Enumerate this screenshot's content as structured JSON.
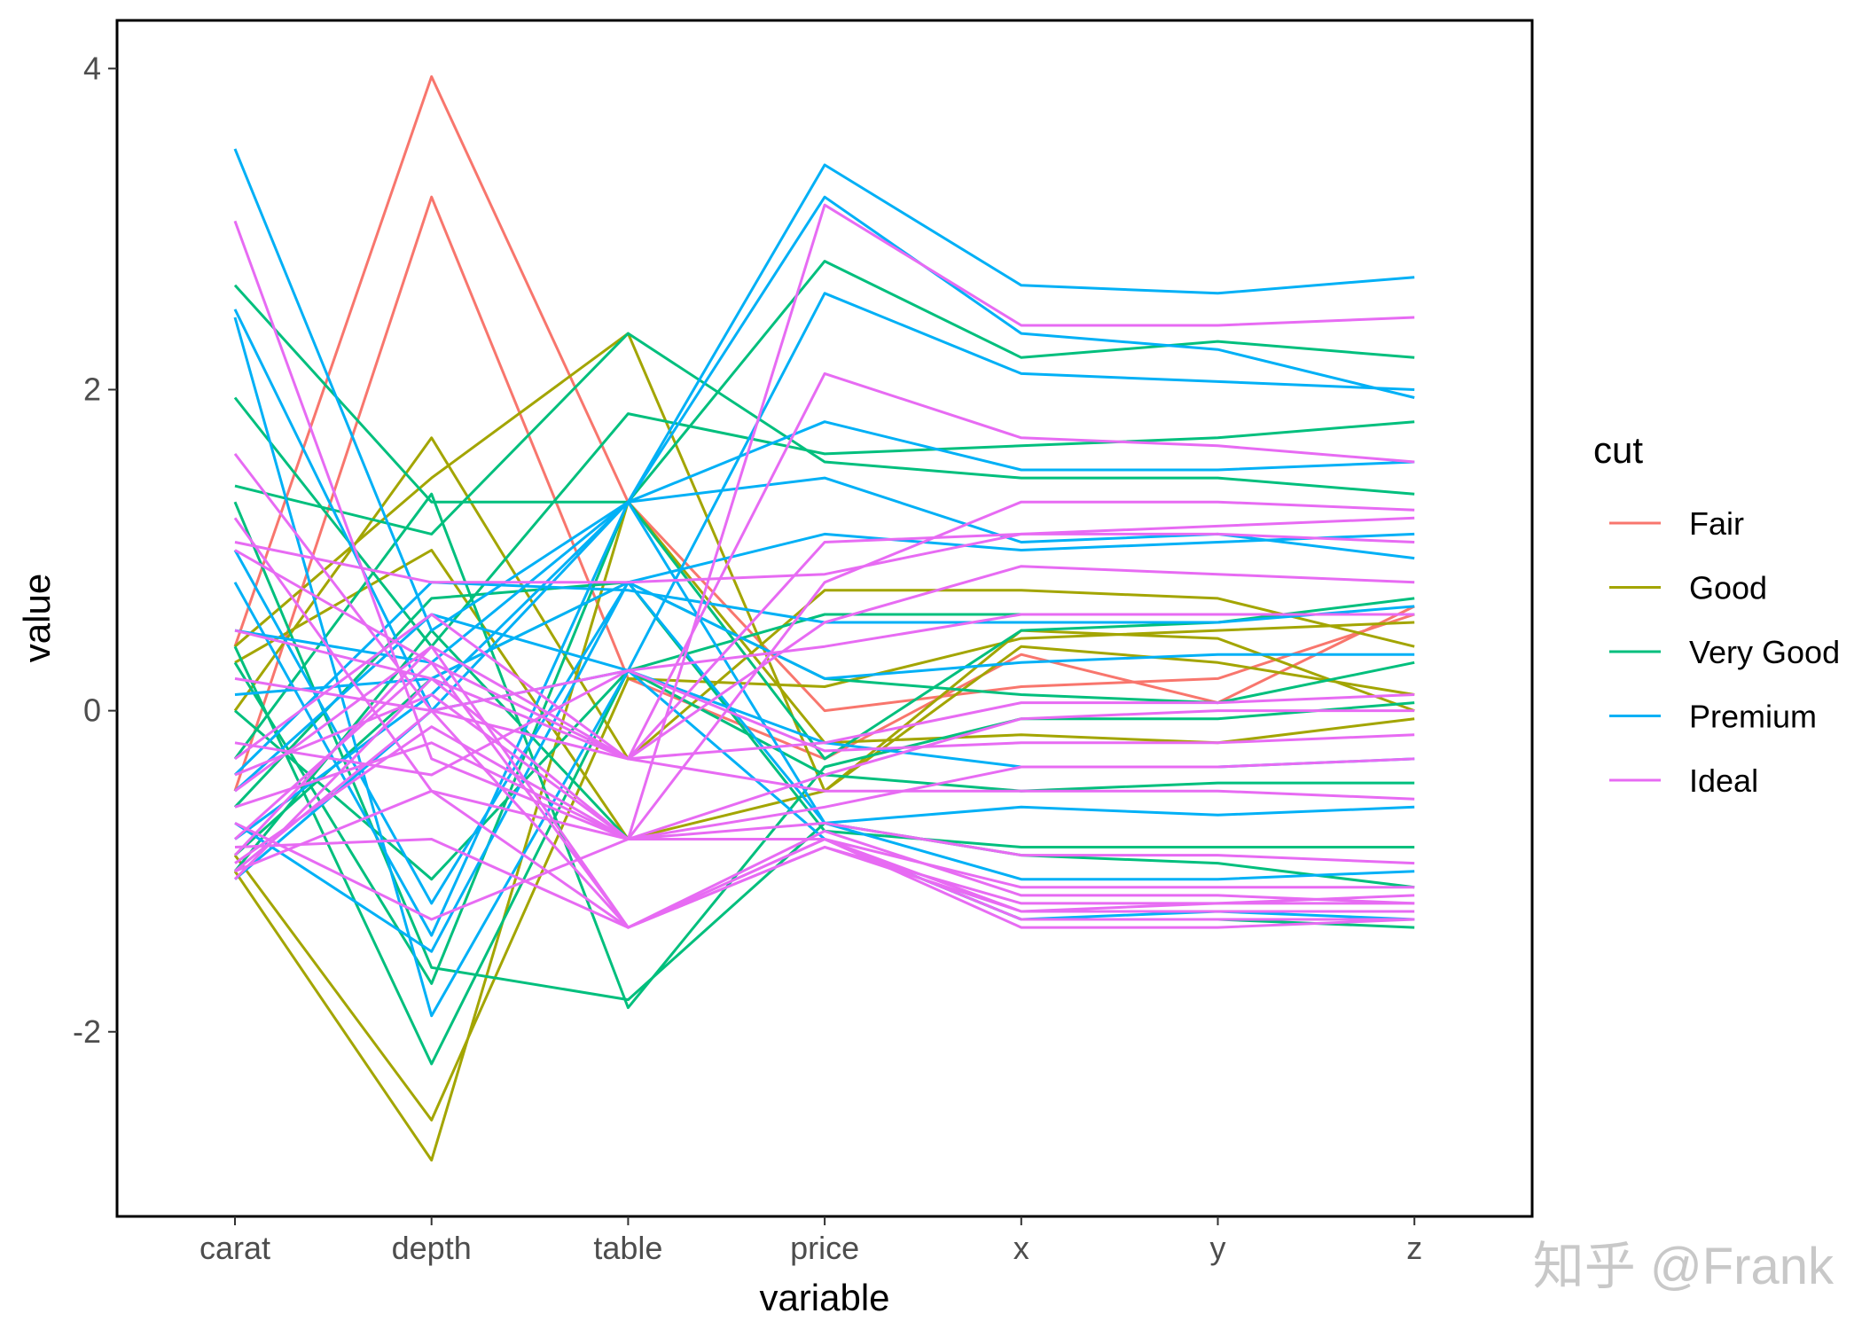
{
  "chart_data": {
    "type": "line",
    "xlabel": "variable",
    "ylabel": "value",
    "categories": [
      "carat",
      "depth",
      "table",
      "price",
      "x",
      "y",
      "z"
    ],
    "ylim": [
      -3.15,
      4.3
    ],
    "yticks": [
      -2,
      0,
      2,
      4
    ],
    "legend": {
      "title": "cut",
      "placement": "right",
      "entries": [
        {
          "name": "Fair",
          "color": "#F8766D"
        },
        {
          "name": "Good",
          "color": "#A3A500"
        },
        {
          "name": "Very Good",
          "color": "#00BF7D"
        },
        {
          "name": "Premium",
          "color": "#00B0F6"
        },
        {
          "name": "Ideal",
          "color": "#E76BF3"
        }
      ]
    },
    "series": [
      {
        "name": "Fair",
        "values": [
          0.4,
          3.95,
          1.3,
          0.0,
          0.15,
          0.2,
          0.6
        ]
      },
      {
        "name": "Fair",
        "values": [
          -0.5,
          3.2,
          0.2,
          -0.3,
          0.35,
          0.05,
          0.65
        ]
      },
      {
        "name": "Good",
        "values": [
          0.0,
          1.7,
          -0.3,
          0.75,
          0.75,
          0.7,
          0.4
        ]
      },
      {
        "name": "Good",
        "values": [
          0.4,
          1.45,
          2.35,
          -0.5,
          0.4,
          0.3,
          0.1
        ]
      },
      {
        "name": "Good",
        "values": [
          -0.9,
          -2.55,
          0.2,
          0.15,
          0.45,
          0.5,
          0.55
        ]
      },
      {
        "name": "Good",
        "values": [
          -1.0,
          -2.8,
          1.3,
          -0.2,
          -0.15,
          -0.2,
          -0.05
        ]
      },
      {
        "name": "Good",
        "values": [
          0.3,
          1.0,
          -0.8,
          -0.5,
          0.5,
          0.45,
          0.0
        ]
      },
      {
        "name": "Very Good",
        "values": [
          2.65,
          1.3,
          1.3,
          2.8,
          2.2,
          2.3,
          2.2
        ]
      },
      {
        "name": "Very Good",
        "values": [
          1.95,
          0.4,
          1.85,
          1.6,
          1.65,
          1.7,
          1.8
        ]
      },
      {
        "name": "Very Good",
        "values": [
          1.4,
          1.1,
          2.35,
          1.55,
          1.45,
          1.45,
          1.35
        ]
      },
      {
        "name": "Very Good",
        "values": [
          0.4,
          -2.2,
          0.25,
          0.6,
          0.6,
          0.6,
          0.6
        ]
      },
      {
        "name": "Very Good",
        "values": [
          0.3,
          -1.7,
          1.3,
          -0.3,
          0.5,
          0.55,
          0.7
        ]
      },
      {
        "name": "Very Good",
        "values": [
          -0.3,
          1.35,
          -1.85,
          -0.35,
          -0.05,
          -0.05,
          0.05
        ]
      },
      {
        "name": "Very Good",
        "values": [
          -0.9,
          0.2,
          0.8,
          -0.75,
          -0.85,
          -0.85,
          -0.85
        ]
      },
      {
        "name": "Very Good",
        "values": [
          -1.0,
          0.5,
          -0.8,
          -0.8,
          -1.3,
          -1.3,
          -1.35
        ]
      },
      {
        "name": "Very Good",
        "values": [
          0.0,
          -1.05,
          0.25,
          -0.4,
          -0.5,
          -0.45,
          -0.45
        ]
      },
      {
        "name": "Very Good",
        "values": [
          -0.6,
          0.7,
          0.8,
          0.2,
          0.1,
          0.05,
          0.3
        ]
      },
      {
        "name": "Very Good",
        "values": [
          1.3,
          -1.6,
          -1.8,
          -0.7,
          -0.9,
          -0.95,
          -1.1
        ]
      },
      {
        "name": "Premium",
        "values": [
          3.5,
          0.5,
          1.3,
          3.4,
          2.65,
          2.6,
          2.7
        ]
      },
      {
        "name": "Premium",
        "values": [
          2.5,
          0.0,
          1.3,
          3.2,
          2.35,
          2.25,
          1.95
        ]
      },
      {
        "name": "Premium",
        "values": [
          2.45,
          -1.9,
          0.25,
          2.6,
          2.1,
          2.05,
          2.0
        ]
      },
      {
        "name": "Premium",
        "values": [
          0.8,
          -1.4,
          1.3,
          1.8,
          1.5,
          1.5,
          1.55
        ]
      },
      {
        "name": "Premium",
        "values": [
          0.5,
          0.3,
          1.3,
          1.45,
          1.05,
          1.1,
          0.95
        ]
      },
      {
        "name": "Premium",
        "values": [
          -0.4,
          0.8,
          0.75,
          0.55,
          0.55,
          0.55,
          0.65
        ]
      },
      {
        "name": "Premium",
        "values": [
          -0.8,
          0.1,
          1.3,
          -0.7,
          -0.6,
          -0.65,
          -0.6
        ]
      },
      {
        "name": "Premium",
        "values": [
          -0.7,
          -1.5,
          0.8,
          -0.7,
          -1.05,
          -1.05,
          -1.0
        ]
      },
      {
        "name": "Premium",
        "values": [
          -1.05,
          0.0,
          0.25,
          -0.8,
          -1.3,
          -1.25,
          -1.3
        ]
      },
      {
        "name": "Premium",
        "values": [
          0.1,
          0.2,
          0.8,
          0.2,
          0.3,
          0.35,
          0.35
        ]
      },
      {
        "name": "Premium",
        "values": [
          -0.5,
          0.6,
          0.25,
          -0.2,
          -0.35,
          -0.35,
          -0.3
        ]
      },
      {
        "name": "Premium",
        "values": [
          1.0,
          -1.2,
          0.8,
          1.1,
          1.0,
          1.05,
          1.1
        ]
      },
      {
        "name": "Ideal",
        "values": [
          3.05,
          -0.3,
          -0.8,
          3.15,
          2.4,
          2.4,
          2.45
        ]
      },
      {
        "name": "Ideal",
        "values": [
          1.6,
          0.0,
          -0.3,
          2.1,
          1.7,
          1.65,
          1.55
        ]
      },
      {
        "name": "Ideal",
        "values": [
          1.0,
          0.3,
          -0.3,
          1.05,
          1.1,
          1.15,
          1.2
        ]
      },
      {
        "name": "Ideal",
        "values": [
          1.2,
          -0.5,
          -0.8,
          0.8,
          1.3,
          1.3,
          1.25
        ]
      },
      {
        "name": "Ideal",
        "values": [
          0.5,
          0.2,
          -0.3,
          0.55,
          0.9,
          0.85,
          0.8
        ]
      },
      {
        "name": "Ideal",
        "values": [
          -0.4,
          0.1,
          -0.8,
          -0.4,
          -0.05,
          0.0,
          0.0
        ]
      },
      {
        "name": "Ideal",
        "values": [
          -0.6,
          -0.2,
          -0.8,
          -0.6,
          -0.35,
          -0.35,
          -0.3
        ]
      },
      {
        "name": "Ideal",
        "values": [
          -0.8,
          0.3,
          -1.35,
          -0.8,
          -1.1,
          -1.1,
          -1.1
        ]
      },
      {
        "name": "Ideal",
        "values": [
          -0.9,
          0.4,
          -1.35,
          -0.85,
          -1.2,
          -1.2,
          -1.15
        ]
      },
      {
        "name": "Ideal",
        "values": [
          -0.95,
          -0.1,
          -0.8,
          -0.8,
          -1.25,
          -1.25,
          -1.25
        ]
      },
      {
        "name": "Ideal",
        "values": [
          -1.0,
          0.0,
          -1.35,
          -0.8,
          -1.3,
          -1.3,
          -1.3
        ]
      },
      {
        "name": "Ideal",
        "values": [
          -1.05,
          0.2,
          -0.8,
          -0.8,
          -1.35,
          -1.35,
          -1.3
        ]
      },
      {
        "name": "Ideal",
        "values": [
          -0.7,
          -1.3,
          -0.8,
          -0.7,
          -0.9,
          -0.9,
          -0.95
        ]
      },
      {
        "name": "Ideal",
        "values": [
          -0.3,
          0.6,
          -0.3,
          -0.2,
          0.05,
          0.05,
          0.1
        ]
      },
      {
        "name": "Ideal",
        "values": [
          0.2,
          0.0,
          0.25,
          0.4,
          0.6,
          0.6,
          0.6
        ]
      },
      {
        "name": "Ideal",
        "values": [
          -0.85,
          -0.8,
          -1.35,
          -0.75,
          -1.15,
          -1.15,
          -1.2
        ]
      },
      {
        "name": "Ideal",
        "values": [
          -0.5,
          0.4,
          -0.3,
          -0.5,
          -0.5,
          -0.5,
          -0.55
        ]
      },
      {
        "name": "Ideal",
        "values": [
          1.05,
          0.8,
          0.8,
          0.85,
          1.1,
          1.1,
          1.05
        ]
      },
      {
        "name": "Ideal",
        "values": [
          -0.2,
          -0.4,
          0.25,
          -0.25,
          -0.2,
          -0.2,
          -0.15
        ]
      },
      {
        "name": "Ideal",
        "values": [
          -1.0,
          -0.5,
          -1.35,
          -0.85,
          -1.25,
          -1.2,
          -1.2
        ]
      }
    ]
  },
  "watermark": "知乎 @Frank"
}
